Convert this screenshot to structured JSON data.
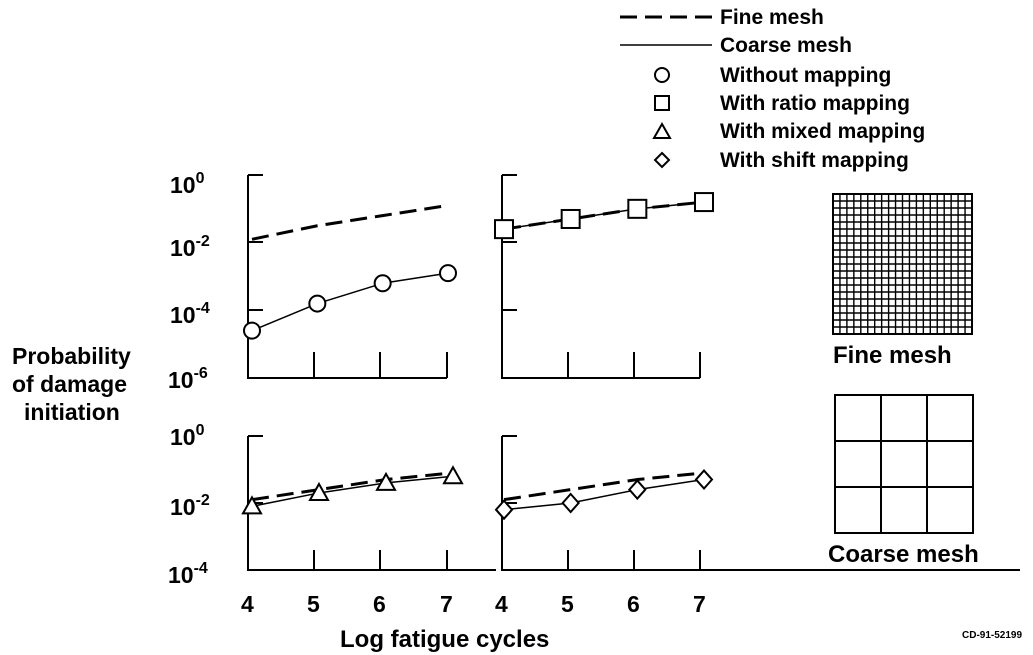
{
  "legend": {
    "fine_mesh": "Fine mesh",
    "coarse_mesh": "Coarse mesh",
    "without_mapping": "Without mapping",
    "ratio_mapping": "With ratio mapping",
    "mixed_mapping": "With mixed mapping",
    "shift_mapping": "With shift mapping"
  },
  "ylabel_lines": [
    "Probability",
    "of damage",
    "initiation"
  ],
  "xlabel": "Log fatigue cycles",
  "mesh_labels": {
    "fine": "Fine mesh",
    "coarse": "Coarse mesh"
  },
  "figure_code": "CD-91-52199",
  "colors": {
    "ink": "#000000",
    "background": "#ffffff"
  },
  "chart_data": [
    {
      "type": "line",
      "scale": "log-y",
      "x": [
        4,
        5,
        6,
        7
      ],
      "xlim": [
        4,
        7
      ],
      "ylim_exponent": [
        -6,
        0
      ],
      "ytick_exponents": [
        0,
        -2,
        -4,
        -6
      ],
      "series": [
        {
          "name": "Fine mesh",
          "style": "dashed",
          "y_exponent": [
            -1.9,
            -1.5,
            -1.2,
            -0.9
          ]
        },
        {
          "name": "Without mapping",
          "style": "solid",
          "marker": "circle",
          "y_exponent": [
            -4.6,
            -3.8,
            -3.2,
            -2.9
          ]
        }
      ]
    },
    {
      "type": "line",
      "scale": "log-y",
      "x": [
        4,
        5,
        6,
        7
      ],
      "xlim": [
        4,
        7
      ],
      "ylim_exponent": [
        -6,
        0
      ],
      "series": [
        {
          "name": "Fine mesh",
          "style": "dashed",
          "y_exponent": [
            -1.6,
            -1.3,
            -1.0,
            -0.8
          ]
        },
        {
          "name": "With ratio mapping",
          "style": "solid",
          "marker": "square",
          "y_exponent": [
            -1.6,
            -1.3,
            -1.0,
            -0.8
          ]
        }
      ]
    },
    {
      "type": "line",
      "scale": "log-y",
      "x": [
        4,
        5,
        6,
        7
      ],
      "xlim": [
        4,
        7
      ],
      "ylim_exponent": [
        -4,
        0
      ],
      "ytick_exponents": [
        0,
        -2,
        -4
      ],
      "xticks": [
        "4",
        "5",
        "6",
        "7"
      ],
      "series": [
        {
          "name": "Fine mesh",
          "style": "dashed",
          "y_exponent": [
            -1.9,
            -1.6,
            -1.3,
            -1.1
          ]
        },
        {
          "name": "With mixed mapping",
          "style": "solid",
          "marker": "triangle",
          "y_exponent": [
            -2.1,
            -1.7,
            -1.4,
            -1.2
          ]
        }
      ]
    },
    {
      "type": "line",
      "scale": "log-y",
      "x": [
        4,
        5,
        6,
        7
      ],
      "xlim": [
        4,
        7
      ],
      "ylim_exponent": [
        -4,
        0
      ],
      "xticks": [
        "4",
        "5",
        "6",
        "7"
      ],
      "series": [
        {
          "name": "Fine mesh",
          "style": "dashed",
          "y_exponent": [
            -1.9,
            -1.6,
            -1.3,
            -1.1
          ]
        },
        {
          "name": "With shift mapping",
          "style": "solid",
          "marker": "diamond",
          "y_exponent": [
            -2.2,
            -2.0,
            -1.6,
            -1.3
          ]
        }
      ]
    }
  ]
}
